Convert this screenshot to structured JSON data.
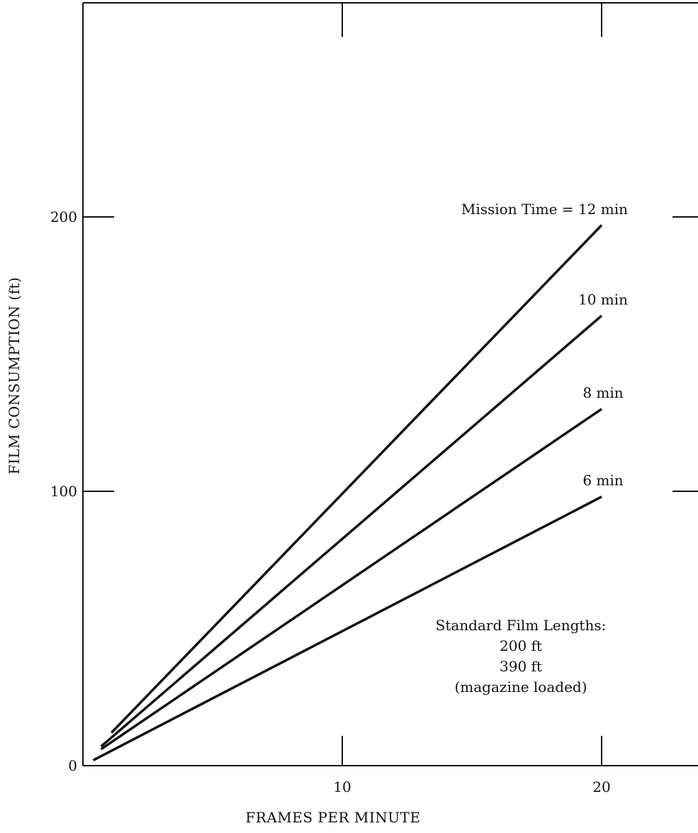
{
  "chart_data": {
    "type": "line",
    "title": "",
    "xlabel": "FRAMES PER MINUTE",
    "ylabel": "FILM CONSUMPTION (ft)",
    "xlim": [
      0,
      24
    ],
    "ylim": [
      0,
      280
    ],
    "x_ticks": [
      10,
      20
    ],
    "x_tick_labels": [
      "10",
      "20"
    ],
    "y_ticks": [
      0,
      100,
      200
    ],
    "y_tick_labels": [
      "0",
      "100",
      "200"
    ],
    "grid": false,
    "series": [
      {
        "name": "Mission Time = 12 min",
        "x": [
          1.1,
          20
        ],
        "y": [
          12,
          197
        ]
      },
      {
        "name": "10 min",
        "x": [
          0.7,
          20
        ],
        "y": [
          7,
          164
        ]
      },
      {
        "name": "8 min",
        "x": [
          0.7,
          20
        ],
        "y": [
          6,
          130
        ]
      },
      {
        "name": "6 min",
        "x": [
          0.4,
          20
        ],
        "y": [
          2,
          98
        ]
      }
    ],
    "annotations": [
      {
        "text": "Standard Film Lengths:"
      },
      {
        "text": "200 ft"
      },
      {
        "text": "390 ft"
      },
      {
        "text": "(magazine loaded)"
      }
    ]
  }
}
